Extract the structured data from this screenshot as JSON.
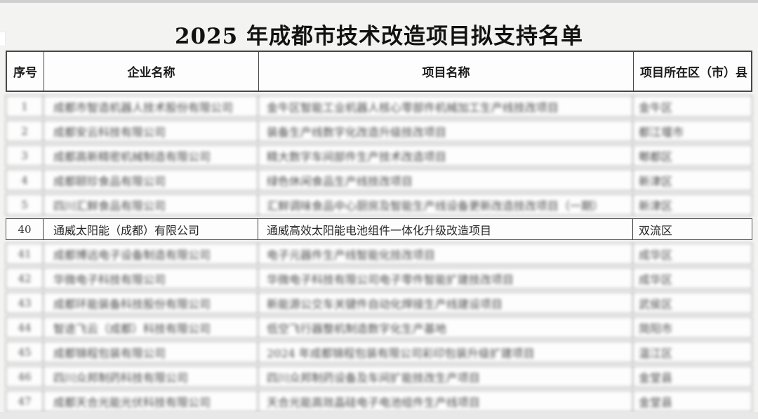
{
  "page": {
    "title": "2025 年成都市技术改造项目拟支持名单"
  },
  "colors": {
    "page_background": "#f3f3f2",
    "cell_background": "#fdfdfd",
    "header_border": "#474747",
    "row_border": "#8f8f8f",
    "title_text": "#121212",
    "top_strip": "#cfcfcf",
    "bottom_strip": "#e8e8e8"
  },
  "table": {
    "headers": [
      "序号",
      "企业名称",
      "项目名称",
      "项目所在区（市）县"
    ],
    "highlight_row_no": "40",
    "blur_note": "除序号 40 一行外，其余各行内容在原图中为模糊不可读状态（下列文字仅为等长占位）",
    "rows": [
      {
        "no": "1",
        "company": "成都市智造机器人技术股份有限公司",
        "project": "金牛区智能工业机器人核心零部件机械加工生产线技改项目",
        "district": "金牛区",
        "blurred": true
      },
      {
        "no": "2",
        "company": "成都安云科技有限公司",
        "project": "装备生产线数字化改造升级技改项目",
        "district": "都江堰市",
        "blurred": true
      },
      {
        "no": "3",
        "company": "成都高新精密机械制造有限公司",
        "project": "精大数字车间部件生产技术改造项目",
        "district": "郫都区",
        "blurred": true
      },
      {
        "no": "4",
        "company": "成都颐珍食品有限公司",
        "project": "绿色休闲食品生产线技改项目",
        "district": "新津区",
        "blurred": true
      },
      {
        "no": "5",
        "company": "四川汇鲜食品有限公司",
        "project": "汇鲜调味食品中心厨房及智能生产线设备更新改造技改项目（一期）",
        "district": "新津区",
        "blurred": true
      },
      {
        "no": "40",
        "company": "通威太阳能（成都）有限公司",
        "project": "通威高效太阳能电池组件一体化升级改造项目",
        "district": "双流区",
        "blurred": false
      },
      {
        "no": "41",
        "company": "成都博远电子设备制造有限公司",
        "project": "电子元器件生产线智能化技改项目",
        "district": "成华区",
        "blurred": true
      },
      {
        "no": "42",
        "company": "华微电子科技有限公司",
        "project": "华微电子科技有限公司电子零件智能扩建技改项目",
        "district": "成华区",
        "blurred": true
      },
      {
        "no": "43",
        "company": "成都环能装备科技股份有限公司",
        "project": "新能源公交车关键件自动化焊接生产线建设项目",
        "district": "武侯区",
        "blurred": true
      },
      {
        "no": "44",
        "company": "智途飞云（成都）科技有限公司",
        "project": "低空飞行器整机制造数字化生产基地",
        "district": "简阳市",
        "blurred": true
      },
      {
        "no": "45",
        "company": "成都锦程包装有限公司",
        "project": "2024 年成都锦程包装有限公司彩印包装升级扩建项目",
        "district": "温江区",
        "blurred": true
      },
      {
        "no": "46",
        "company": "四川众邦制药科技有限公司",
        "project": "四川众邦制药设备及车间扩能技改生产项目",
        "district": "金堂县",
        "blurred": true
      },
      {
        "no": "47",
        "company": "成都天合光能光伏科技有限公司",
        "project": "天合光能高效晶硅电子电池组件生产线项目",
        "district": "金堂县",
        "blurred": true
      }
    ]
  }
}
